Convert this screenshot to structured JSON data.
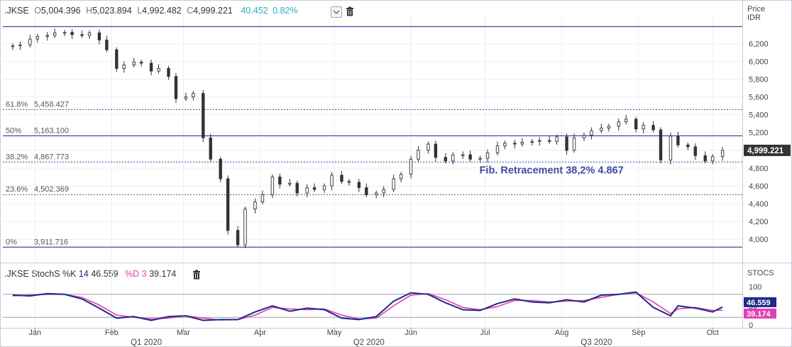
{
  "main_header": {
    "symbol": ".JKSE",
    "open_label": "O",
    "open_value": "5,004.396",
    "high_label": "H",
    "high_value": "5,023.894",
    "low_label": "L",
    "low_value": "4,992.482",
    "close_label": "C",
    "close_value": "4,999.221",
    "change": "40.452",
    "change_pct": "0.82%"
  },
  "stoch_header": {
    "title": ".JKSE StochS %K",
    "k_period": "14",
    "k_value": "46.559",
    "d_label": "%D",
    "d_period": "3",
    "d_value": "39.174"
  },
  "colors": {
    "k_line": "#1f2a8a",
    "d_line": "#e040b0",
    "fib_line": "#3b4aa0",
    "change_text": "#2ab0c0",
    "price_badge": "#333333",
    "k_badge": "#1f2a8a",
    "d_badge": "#e040b0",
    "annotation": "#3b4aa0"
  },
  "chart_data": [
    {
      "type": "candlestick",
      "title": "",
      "ylabel": "Price IDR",
      "y_axis_title_line1": "Price",
      "y_axis_title_line2": "IDR",
      "ylim": [
        3850,
        6450
      ],
      "y_ticks": [
        4000,
        4200,
        4400,
        4600,
        4800,
        5000,
        5200,
        5400,
        5600,
        5800,
        6000,
        6200
      ],
      "y_tick_labels": [
        "4,000",
        "4,200",
        "4,400",
        "4,600",
        "4,800",
        "5,000",
        "5,200",
        "5,400",
        "5,600",
        "5,800",
        "6,000",
        "6,200"
      ],
      "last_price_label": "4,999.221",
      "x_month_labels": [
        {
          "label": "Jan",
          "date": "2020-01-01"
        },
        {
          "label": "Feb",
          "date": "2020-02-01"
        },
        {
          "label": "Mar",
          "date": "2020-03-01"
        },
        {
          "label": "Apr",
          "date": "2020-04-01"
        },
        {
          "label": "May",
          "date": "2020-05-01"
        },
        {
          "label": "Jun",
          "date": "2020-06-01"
        },
        {
          "label": "Jul",
          "date": "2020-07-01"
        },
        {
          "label": "Aug",
          "date": "2020-08-01"
        },
        {
          "label": "Sep",
          "date": "2020-09-01"
        },
        {
          "label": "Oct",
          "date": "2020-10-01"
        }
      ],
      "x_quarter_labels": [
        {
          "label": "Q1 2020",
          "date": "2020-02-15"
        },
        {
          "label": "Q2 2020",
          "date": "2020-05-15"
        },
        {
          "label": "Q3 2020",
          "date": "2020-08-15"
        }
      ],
      "fib_levels": [
        {
          "pct": "61.8%",
          "value": "5,458.427",
          "y": 5458.427,
          "style": "dotted"
        },
        {
          "pct": "50%",
          "value": "5,163.100",
          "y": 5163.1,
          "style": "solid"
        },
        {
          "pct": "38.2%",
          "value": "4,867.773",
          "y": 4867.773,
          "style": "dotted"
        },
        {
          "pct": "23.6%",
          "value": "4,502.369",
          "y": 4502.369,
          "style": "dotted"
        },
        {
          "pct": "0%",
          "value": "3,911.716",
          "y": 3911.716,
          "style": "solid"
        }
      ],
      "top_line_y": 6390,
      "annotation": {
        "text": "Fib. Retracement 38,2% 4.867",
        "date": "2020-07-01",
        "y": 4867
      },
      "closes": [
        [
          "2019-12-23",
          6175
        ],
        [
          "2019-12-26",
          6185
        ],
        [
          "2019-12-30",
          6250
        ],
        [
          "2020-01-02",
          6280
        ],
        [
          "2020-01-06",
          6290
        ],
        [
          "2020-01-09",
          6320
        ],
        [
          "2020-01-13",
          6325
        ],
        [
          "2020-01-16",
          6300
        ],
        [
          "2020-01-20",
          6290
        ],
        [
          "2020-01-23",
          6320
        ],
        [
          "2020-01-27",
          6240
        ],
        [
          "2020-01-30",
          6130
        ],
        [
          "2020-02-03",
          5920
        ],
        [
          "2020-02-06",
          5960
        ],
        [
          "2020-02-10",
          5990
        ],
        [
          "2020-02-13",
          5980
        ],
        [
          "2020-02-17",
          5890
        ],
        [
          "2020-02-20",
          5920
        ],
        [
          "2020-02-24",
          5830
        ],
        [
          "2020-02-27",
          5580
        ],
        [
          "2020-03-02",
          5600
        ],
        [
          "2020-03-05",
          5640
        ],
        [
          "2020-03-09",
          5140
        ],
        [
          "2020-03-12",
          4900
        ],
        [
          "2020-03-16",
          4680
        ],
        [
          "2020-03-19",
          4100
        ],
        [
          "2020-03-23",
          3937
        ],
        [
          "2020-03-26",
          4340
        ],
        [
          "2020-03-30",
          4420
        ],
        [
          "2020-04-02",
          4500
        ],
        [
          "2020-04-06",
          4700
        ],
        [
          "2020-04-09",
          4620
        ],
        [
          "2020-04-13",
          4630
        ],
        [
          "2020-04-16",
          4520
        ],
        [
          "2020-04-20",
          4580
        ],
        [
          "2020-04-23",
          4560
        ],
        [
          "2020-04-27",
          4600
        ],
        [
          "2020-04-30",
          4720
        ],
        [
          "2020-05-04",
          4650
        ],
        [
          "2020-05-07",
          4640
        ],
        [
          "2020-05-11",
          4580
        ],
        [
          "2020-05-14",
          4500
        ],
        [
          "2020-05-18",
          4520
        ],
        [
          "2020-05-21",
          4560
        ],
        [
          "2020-05-25",
          4680
        ],
        [
          "2020-05-28",
          4730
        ],
        [
          "2020-06-01",
          4900
        ],
        [
          "2020-06-04",
          5000
        ],
        [
          "2020-06-08",
          5070
        ],
        [
          "2020-06-11",
          4920
        ],
        [
          "2020-06-15",
          4880
        ],
        [
          "2020-06-18",
          4950
        ],
        [
          "2020-06-22",
          4950
        ],
        [
          "2020-06-25",
          4900
        ],
        [
          "2020-06-29",
          4910
        ],
        [
          "2020-07-02",
          4970
        ],
        [
          "2020-07-06",
          5050
        ],
        [
          "2020-07-09",
          5080
        ],
        [
          "2020-07-13",
          5070
        ],
        [
          "2020-07-16",
          5090
        ],
        [
          "2020-07-20",
          5100
        ],
        [
          "2020-07-23",
          5110
        ],
        [
          "2020-07-27",
          5100
        ],
        [
          "2020-07-30",
          5150
        ],
        [
          "2020-08-03",
          5000
        ],
        [
          "2020-08-06",
          5140
        ],
        [
          "2020-08-10",
          5170
        ],
        [
          "2020-08-13",
          5220
        ],
        [
          "2020-08-17",
          5250
        ],
        [
          "2020-08-20",
          5270
        ],
        [
          "2020-08-24",
          5320
        ],
        [
          "2020-08-27",
          5350
        ],
        [
          "2020-08-31",
          5240
        ],
        [
          "2020-09-03",
          5280
        ],
        [
          "2020-09-07",
          5230
        ],
        [
          "2020-09-10",
          4890
        ],
        [
          "2020-09-14",
          5160
        ],
        [
          "2020-09-17",
          5060
        ],
        [
          "2020-09-21",
          5040
        ],
        [
          "2020-09-24",
          4940
        ],
        [
          "2020-09-28",
          4880
        ],
        [
          "2020-10-01",
          4930
        ],
        [
          "2020-10-05",
          4999
        ]
      ]
    },
    {
      "type": "line",
      "title": ".JKSE StochS %K 14 %D 3",
      "ylabel": "STOCS",
      "ylim": [
        0,
        100
      ],
      "y_ticks": [
        0,
        50,
        100
      ],
      "y_tick_labels": [
        "0",
        "50",
        "100"
      ],
      "guide_levels": [
        20,
        80
      ],
      "series": [
        {
          "name": "%K",
          "last_label": "46.559",
          "points": [
            [
              "2019-12-23",
              78
            ],
            [
              "2019-12-30",
              76
            ],
            [
              "2020-01-06",
              82
            ],
            [
              "2020-01-13",
              80
            ],
            [
              "2020-01-20",
              68
            ],
            [
              "2020-01-27",
              44
            ],
            [
              "2020-02-03",
              18
            ],
            [
              "2020-02-10",
              22
            ],
            [
              "2020-02-17",
              12
            ],
            [
              "2020-02-24",
              22
            ],
            [
              "2020-03-02",
              24
            ],
            [
              "2020-03-09",
              12
            ],
            [
              "2020-03-16",
              14
            ],
            [
              "2020-03-23",
              14
            ],
            [
              "2020-03-30",
              34
            ],
            [
              "2020-04-06",
              50
            ],
            [
              "2020-04-13",
              36
            ],
            [
              "2020-04-20",
              44
            ],
            [
              "2020-04-27",
              40
            ],
            [
              "2020-05-04",
              18
            ],
            [
              "2020-05-11",
              14
            ],
            [
              "2020-05-18",
              22
            ],
            [
              "2020-05-25",
              62
            ],
            [
              "2020-06-01",
              84
            ],
            [
              "2020-06-08",
              80
            ],
            [
              "2020-06-15",
              58
            ],
            [
              "2020-06-22",
              40
            ],
            [
              "2020-06-29",
              38
            ],
            [
              "2020-07-06",
              56
            ],
            [
              "2020-07-13",
              68
            ],
            [
              "2020-07-20",
              60
            ],
            [
              "2020-07-27",
              58
            ],
            [
              "2020-08-03",
              66
            ],
            [
              "2020-08-10",
              60
            ],
            [
              "2020-08-17",
              78
            ],
            [
              "2020-08-24",
              80
            ],
            [
              "2020-08-31",
              86
            ],
            [
              "2020-09-07",
              46
            ],
            [
              "2020-09-14",
              24
            ],
            [
              "2020-09-17",
              50
            ],
            [
              "2020-09-24",
              44
            ],
            [
              "2020-10-01",
              34
            ],
            [
              "2020-10-05",
              47
            ]
          ]
        },
        {
          "name": "%D",
          "last_label": "39.174",
          "points": [
            [
              "2019-12-23",
              76
            ],
            [
              "2019-12-30",
              78
            ],
            [
              "2020-01-06",
              80
            ],
            [
              "2020-01-13",
              80
            ],
            [
              "2020-01-20",
              72
            ],
            [
              "2020-01-27",
              52
            ],
            [
              "2020-02-03",
              26
            ],
            [
              "2020-02-10",
              20
            ],
            [
              "2020-02-17",
              16
            ],
            [
              "2020-02-24",
              18
            ],
            [
              "2020-03-02",
              24
            ],
            [
              "2020-03-09",
              18
            ],
            [
              "2020-03-16",
              13
            ],
            [
              "2020-03-23",
              14
            ],
            [
              "2020-03-30",
              26
            ],
            [
              "2020-04-06",
              46
            ],
            [
              "2020-04-13",
              42
            ],
            [
              "2020-04-20",
              40
            ],
            [
              "2020-04-27",
              42
            ],
            [
              "2020-05-04",
              26
            ],
            [
              "2020-05-11",
              16
            ],
            [
              "2020-05-18",
              18
            ],
            [
              "2020-05-25",
              50
            ],
            [
              "2020-06-01",
              78
            ],
            [
              "2020-06-08",
              82
            ],
            [
              "2020-06-15",
              66
            ],
            [
              "2020-06-22",
              46
            ],
            [
              "2020-06-29",
              40
            ],
            [
              "2020-07-06",
              48
            ],
            [
              "2020-07-13",
              64
            ],
            [
              "2020-07-20",
              64
            ],
            [
              "2020-07-27",
              60
            ],
            [
              "2020-08-03",
              62
            ],
            [
              "2020-08-10",
              64
            ],
            [
              "2020-08-17",
              72
            ],
            [
              "2020-08-24",
              80
            ],
            [
              "2020-08-31",
              84
            ],
            [
              "2020-09-07",
              60
            ],
            [
              "2020-09-14",
              30
            ],
            [
              "2020-09-17",
              42
            ],
            [
              "2020-09-24",
              46
            ],
            [
              "2020-10-01",
              38
            ],
            [
              "2020-10-05",
              39
            ]
          ]
        }
      ]
    }
  ]
}
